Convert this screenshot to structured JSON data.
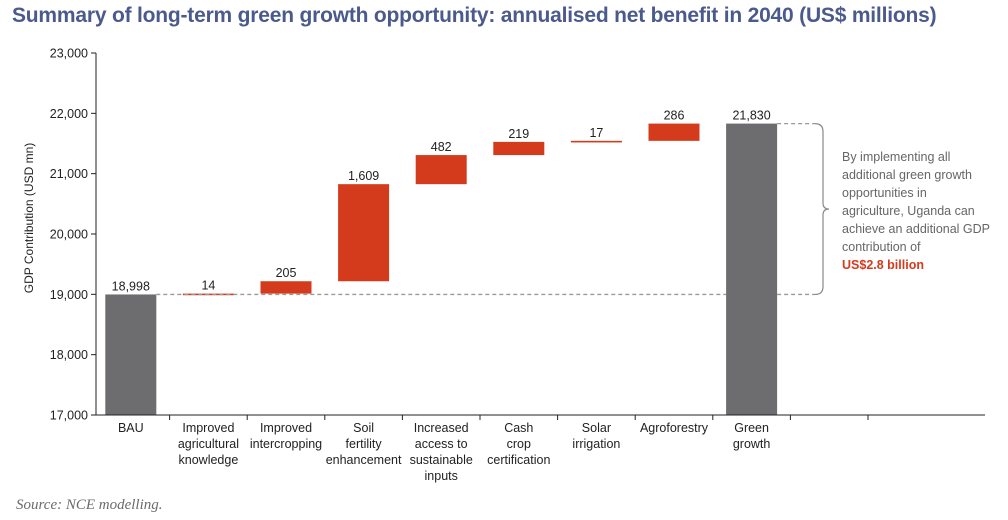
{
  "title": "Summary of long-term green growth opportunity: annualised net benefit in 2040 (US$ millions)",
  "source": "Source: NCE modelling.",
  "annotation": {
    "text": "By implementing all additional green growth opportunities in agriculture, Uganda can achieve an additional GDP contribution of",
    "highlight": "US$2.8 billion"
  },
  "colors": {
    "total": "#6d6d6f",
    "increment": "#d43a1c",
    "dashed": "#9a9a9a",
    "title": "#4a5a8c"
  },
  "chart_data": {
    "type": "bar",
    "subtype": "waterfall",
    "title": "Summary of long-term green growth opportunity: annualised net benefit in 2040 (US$ millions)",
    "ylabel": "GDP Contribution (USD mn)",
    "xlabel": "",
    "ylim": [
      17000,
      23000
    ],
    "yticks": [
      17000,
      18000,
      19000,
      20000,
      21000,
      22000,
      23000
    ],
    "ytick_labels": [
      "17,000",
      "18,000",
      "19,000",
      "20,000",
      "21,000",
      "22,000",
      "23,000"
    ],
    "grid": false,
    "categories": [
      [
        "BAU"
      ],
      [
        "Improved",
        "agricultural",
        "knowledge"
      ],
      [
        "Improved",
        "intercropping"
      ],
      [
        "Soil",
        "fertility",
        "enhancement"
      ],
      [
        "Increased",
        "access to",
        "sustainable",
        "inputs"
      ],
      [
        "Cash",
        "crop",
        "certification"
      ],
      [
        "Solar",
        "irrigation"
      ],
      [
        "Agroforestry"
      ],
      [
        "Green",
        "growth"
      ]
    ],
    "values": [
      18998,
      14,
      205,
      1609,
      482,
      219,
      17,
      286,
      21830
    ],
    "value_labels": [
      "18,998",
      "14",
      "205",
      "1,609",
      "482",
      "219",
      "17",
      "286",
      "21,830"
    ],
    "kinds": [
      "total",
      "increment",
      "increment",
      "increment",
      "increment",
      "increment",
      "increment",
      "increment",
      "total"
    ]
  }
}
